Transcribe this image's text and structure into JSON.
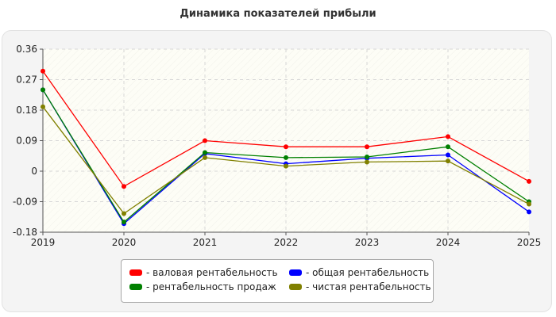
{
  "chart_data": {
    "type": "line",
    "title": "Динамика показателей прибыли",
    "x": [
      "2019",
      "2020",
      "2021",
      "2022",
      "2023",
      "2024",
      "2025"
    ],
    "ylim": [
      -0.18,
      0.36
    ],
    "yticks": [
      0.36,
      0.27,
      0.18,
      0.09,
      0,
      -0.09,
      -0.18
    ],
    "ytick_labels": [
      "0.36",
      "0.27",
      "0.18",
      "0.09",
      "0",
      "-0.09",
      "-0.18"
    ],
    "grid": true,
    "legend_position": "bottom",
    "series": [
      {
        "name": "- валовая рентабельность",
        "color": "#ff0000",
        "values": [
          0.295,
          -0.045,
          0.09,
          0.072,
          0.072,
          0.102,
          -0.03
        ]
      },
      {
        "name": "- общая рентабельность",
        "color": "#0000ff",
        "values": [
          0.24,
          -0.155,
          0.052,
          0.022,
          0.038,
          0.048,
          -0.12
        ]
      },
      {
        "name": "- рентабельность продаж",
        "color": "#008000",
        "values": [
          0.24,
          -0.15,
          0.055,
          0.04,
          0.042,
          0.072,
          -0.09
        ]
      },
      {
        "name": "- чистая рентабельность",
        "color": "#808000",
        "values": [
          0.19,
          -0.125,
          0.04,
          0.015,
          0.027,
          0.03,
          -0.097
        ]
      }
    ]
  }
}
